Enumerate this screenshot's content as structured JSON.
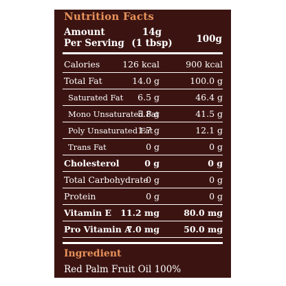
{
  "title": "Nutrition Facts",
  "header": {
    "amount_line1": "Amount",
    "amount_line2": "Per Serving",
    "col1_line1": "14g",
    "col1_line2": "(1 tbsp)",
    "col2": "100g"
  },
  "rows": [
    {
      "label": "Calories",
      "v1": "126 kcal",
      "v2": "900 kcal"
    },
    {
      "label": "Total Fat",
      "v1": "14.0 g",
      "v2": "100.0 g"
    },
    {
      "label": "Saturated Fat",
      "v1": "6.5 g",
      "v2": "46.4 g"
    },
    {
      "label": "Mono Unsaturated Fat",
      "v1": "5.8 g",
      "v2": "41.5 g"
    },
    {
      "label": "Poly Unsaturated Fat",
      "v1": "1.7 g",
      "v2": "12.1 g"
    },
    {
      "label": "Trans Fat",
      "v1": "0 g",
      "v2": "0 g"
    },
    {
      "label": "Cholesterol",
      "v1": "0 g",
      "v2": "0 g"
    },
    {
      "label": "Total Carbohydrate",
      "v1": "0 g",
      "v2": "0 g"
    },
    {
      "label": "Protein",
      "v1": "0 g",
      "v2": "0 g"
    },
    {
      "label": "Vitamin E",
      "v1": "11.2 mg",
      "v2": "80.0 mg"
    },
    {
      "label": "Pro Vitamin A",
      "v1": "7.0 mg",
      "v2": "50.0 mg"
    }
  ],
  "ingredient": {
    "title": "Ingredient",
    "text": "Red Palm Fruit Oil 100%"
  },
  "colors": {
    "background": "#3b1412",
    "accent": "#e8925a",
    "text": "#ffffff"
  }
}
